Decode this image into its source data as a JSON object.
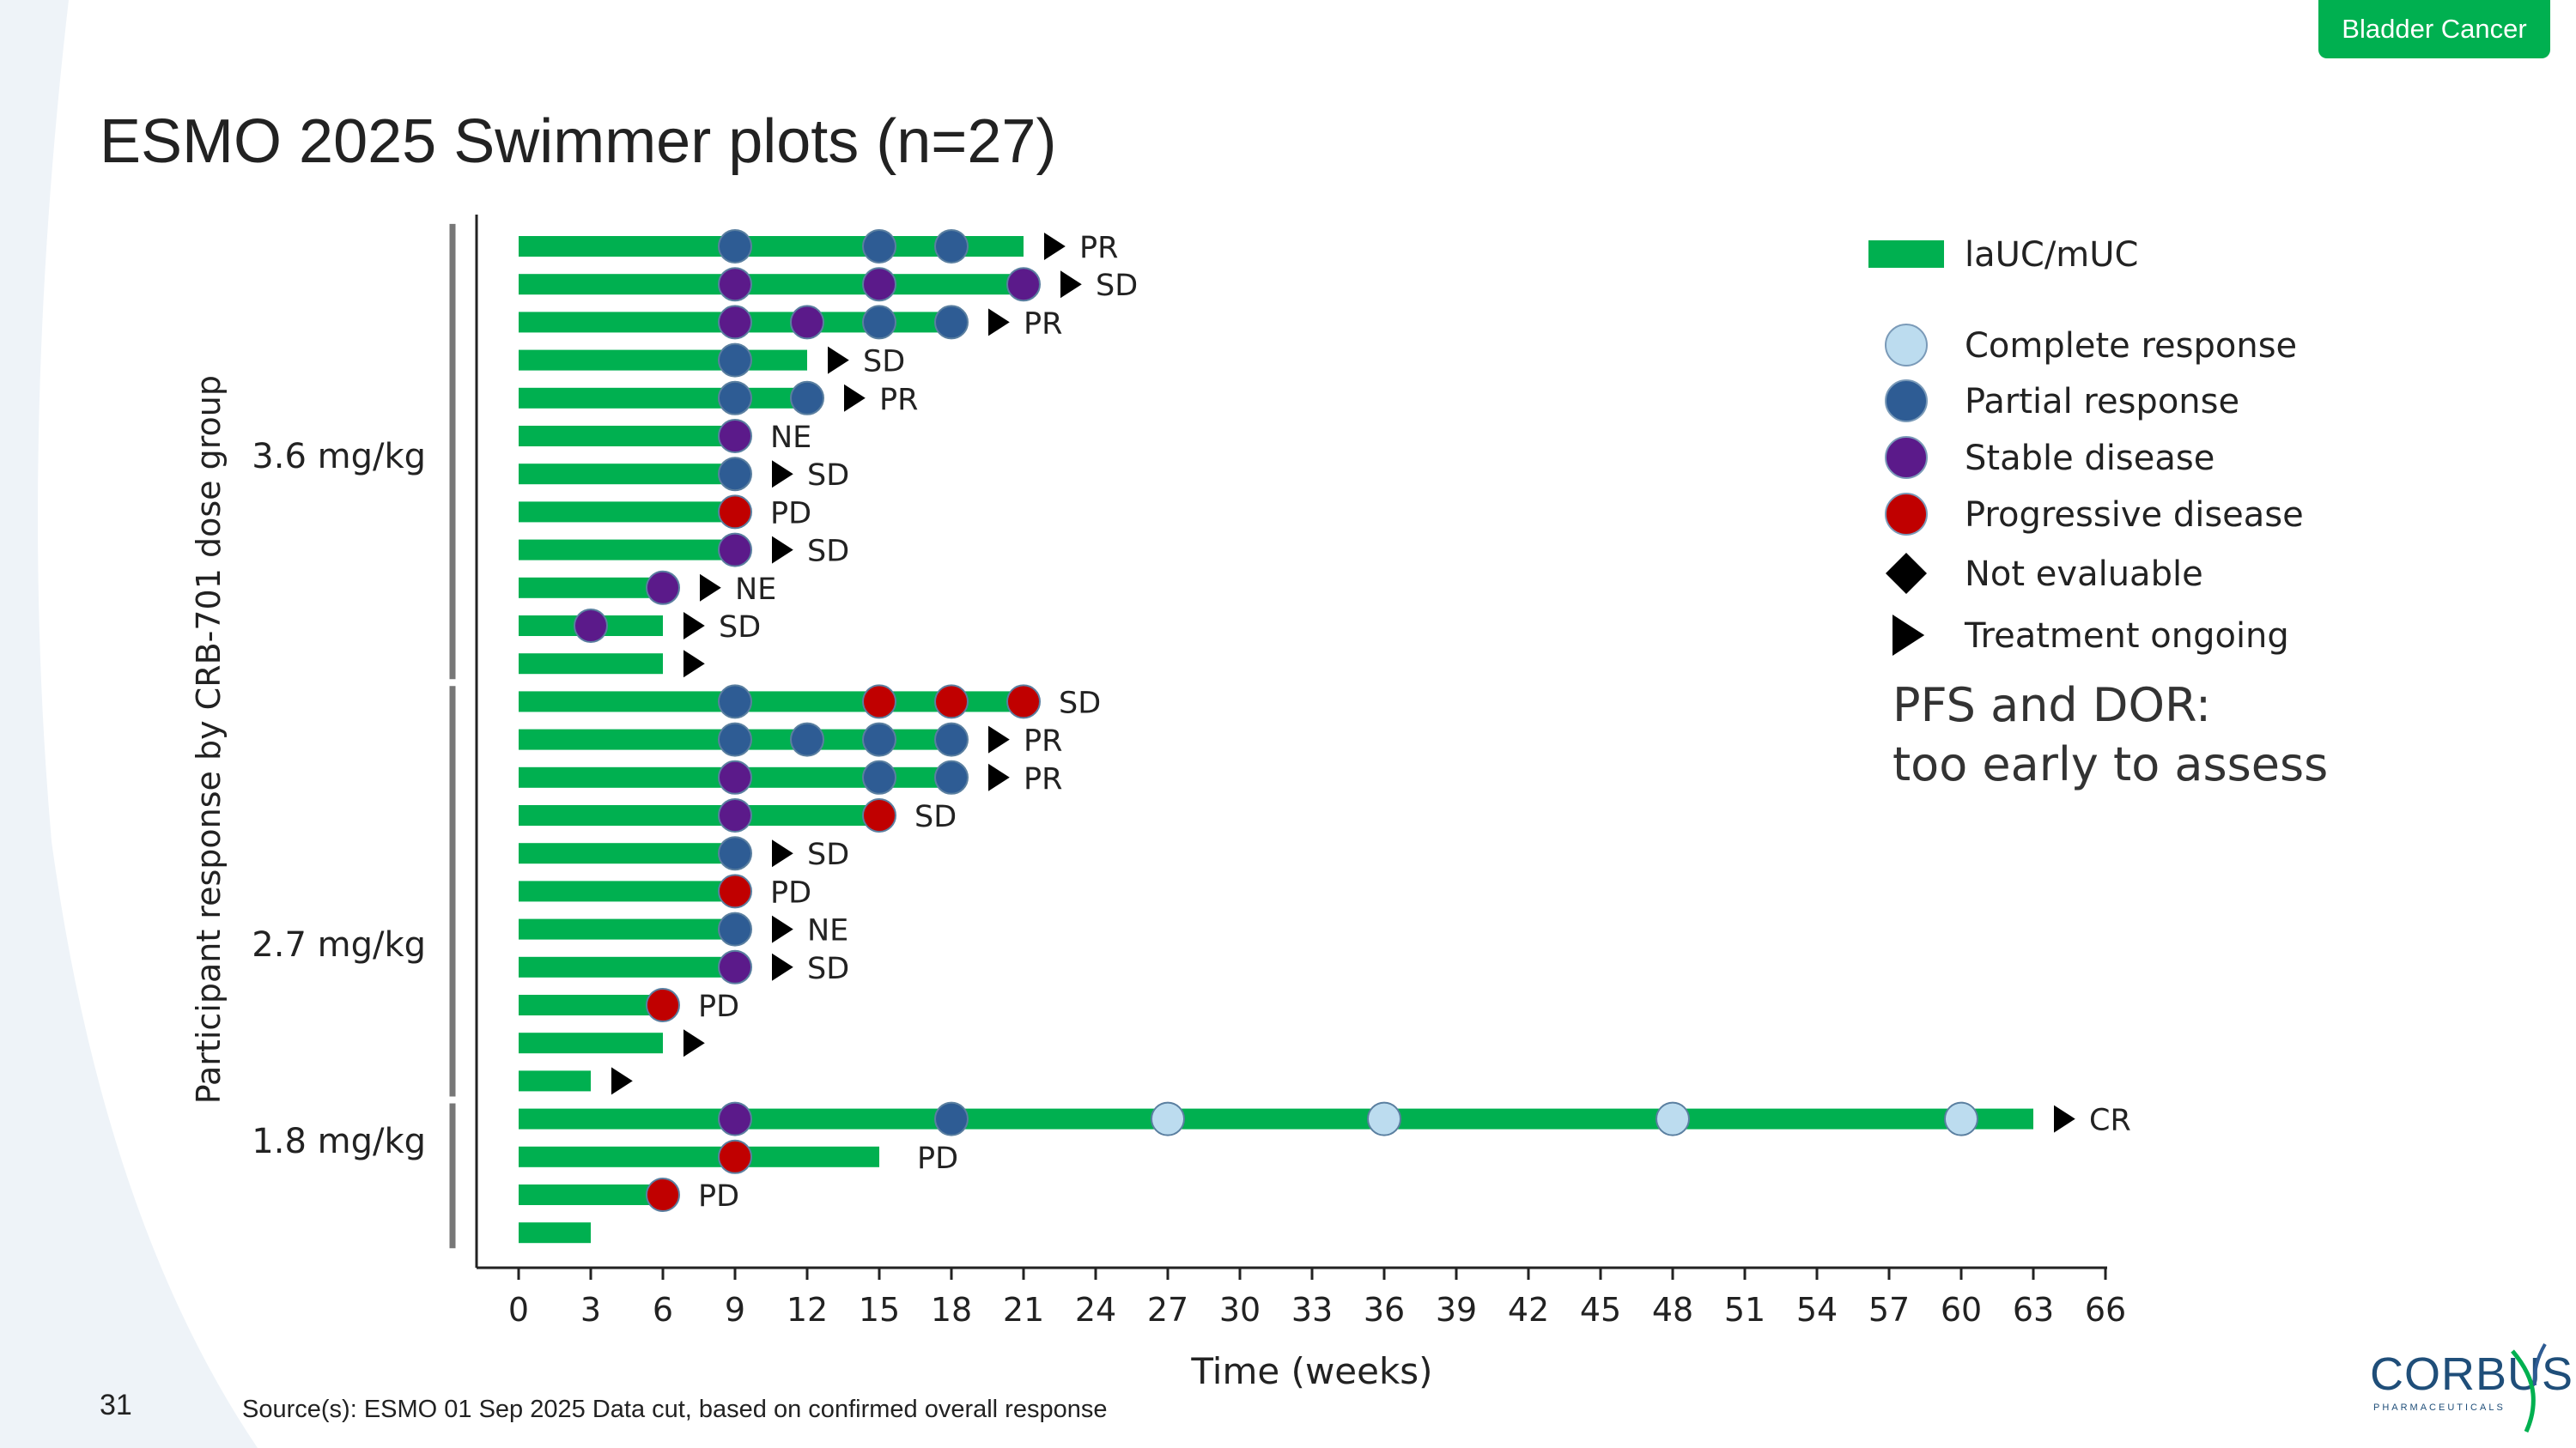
{
  "tag": "Bladder Cancer",
  "title": "ESMO 2025 Swimmer plots (n=27)",
  "page_number": "31",
  "source": "Source(s): ESMO 01 Sep 2025 Data cut, based on confirmed  overall response",
  "logo": {
    "word": "CORBUS",
    "sub": "PHARMACEUTICALS"
  },
  "note": {
    "line1": "PFS and DOR:",
    "line2": "too early to assess"
  },
  "colors": {
    "bar": "#00b050",
    "CR": "#bcdcef",
    "PR": "#2e5c94",
    "SD": "#5b1a8a",
    "PD": "#c00000",
    "accent": "#00b050"
  },
  "chart_data": {
    "type": "swimmer",
    "xlabel": "Time (weeks)",
    "ylabel": "Participant response by CRB-701 dose group",
    "xlim": [
      0,
      66
    ],
    "xticks": [
      0,
      3,
      6,
      9,
      12,
      15,
      18,
      21,
      24,
      27,
      30,
      33,
      36,
      39,
      42,
      45,
      48,
      51,
      54,
      57,
      60,
      63,
      66
    ],
    "groups": [
      {
        "label": "3.6 mg/kg",
        "first_row": 0,
        "last_row": 11
      },
      {
        "label": "2.7 mg/kg",
        "first_row": 12,
        "last_row": 22
      },
      {
        "label": "1.8 mg/kg",
        "first_row": 23,
        "last_row": 26
      }
    ],
    "legend": [
      {
        "kind": "bar",
        "label": "laUC/mUC"
      },
      {
        "kind": "circle",
        "code": "CR",
        "label": "Complete response"
      },
      {
        "kind": "circle",
        "code": "PR",
        "label": "Partial response"
      },
      {
        "kind": "circle",
        "code": "SD",
        "label": "Stable disease"
      },
      {
        "kind": "circle",
        "code": "PD",
        "label": "Progressive disease"
      },
      {
        "kind": "diamond",
        "label": "Not evaluable"
      },
      {
        "kind": "triangle",
        "label": "Treatment ongoing"
      }
    ],
    "participants": [
      {
        "end": 21,
        "ongoing": true,
        "best": "PR",
        "events": [
          {
            "week": 9,
            "r": "PR"
          },
          {
            "week": 15,
            "r": "PR"
          },
          {
            "week": 18,
            "r": "PR"
          }
        ]
      },
      {
        "end": 21,
        "ongoing": true,
        "best": "SD",
        "events": [
          {
            "week": 9,
            "r": "SD"
          },
          {
            "week": 15,
            "r": "SD"
          },
          {
            "week": 21,
            "r": "SD"
          }
        ]
      },
      {
        "end": 18,
        "ongoing": true,
        "best": "PR",
        "events": [
          {
            "week": 9,
            "r": "SD"
          },
          {
            "week": 12,
            "r": "SD"
          },
          {
            "week": 15,
            "r": "PR"
          },
          {
            "week": 18,
            "r": "PR"
          }
        ]
      },
      {
        "end": 12,
        "ongoing": true,
        "best": "SD",
        "events": [
          {
            "week": 9,
            "r": "PR"
          }
        ]
      },
      {
        "end": 12,
        "ongoing": true,
        "best": "PR",
        "events": [
          {
            "week": 9,
            "r": "PR"
          },
          {
            "week": 12,
            "r": "PR"
          }
        ]
      },
      {
        "end": 9,
        "ongoing": false,
        "best": "NE",
        "events": [
          {
            "week": 9,
            "r": "SD"
          }
        ]
      },
      {
        "end": 9,
        "ongoing": true,
        "best": "SD",
        "events": [
          {
            "week": 9,
            "r": "PR"
          }
        ]
      },
      {
        "end": 9,
        "ongoing": false,
        "best": "PD",
        "events": [
          {
            "week": 9,
            "r": "PD"
          }
        ]
      },
      {
        "end": 9,
        "ongoing": true,
        "best": "SD",
        "events": [
          {
            "week": 9,
            "r": "SD"
          }
        ]
      },
      {
        "end": 6,
        "ongoing": true,
        "best": "NE",
        "events": [
          {
            "week": 6,
            "r": "SD"
          }
        ]
      },
      {
        "end": 6,
        "ongoing": true,
        "best": "SD",
        "events": [
          {
            "week": 3,
            "r": "SD"
          }
        ]
      },
      {
        "end": 6,
        "ongoing": true,
        "best": "",
        "events": []
      },
      {
        "end": 21,
        "ongoing": false,
        "best": "SD",
        "events": [
          {
            "week": 9,
            "r": "PR"
          },
          {
            "week": 15,
            "r": "PD"
          },
          {
            "week": 18,
            "r": "PD"
          },
          {
            "week": 21,
            "r": "PD"
          }
        ]
      },
      {
        "end": 18,
        "ongoing": true,
        "best": "PR",
        "events": [
          {
            "week": 9,
            "r": "PR"
          },
          {
            "week": 12,
            "r": "PR"
          },
          {
            "week": 15,
            "r": "PR"
          },
          {
            "week": 18,
            "r": "PR"
          }
        ]
      },
      {
        "end": 18,
        "ongoing": true,
        "best": "PR",
        "events": [
          {
            "week": 9,
            "r": "SD"
          },
          {
            "week": 15,
            "r": "PR"
          },
          {
            "week": 18,
            "r": "PR"
          }
        ]
      },
      {
        "end": 15,
        "ongoing": false,
        "best": "SD",
        "events": [
          {
            "week": 9,
            "r": "SD"
          },
          {
            "week": 15,
            "r": "PD"
          }
        ]
      },
      {
        "end": 9,
        "ongoing": true,
        "best": "SD",
        "events": [
          {
            "week": 9,
            "r": "PR"
          }
        ]
      },
      {
        "end": 9,
        "ongoing": false,
        "best": "PD",
        "events": [
          {
            "week": 9,
            "r": "PD"
          }
        ]
      },
      {
        "end": 9,
        "ongoing": true,
        "best": "NE",
        "events": [
          {
            "week": 9,
            "r": "PR"
          }
        ]
      },
      {
        "end": 9,
        "ongoing": true,
        "best": "SD",
        "events": [
          {
            "week": 9,
            "r": "SD"
          }
        ]
      },
      {
        "end": 6,
        "ongoing": false,
        "best": "PD",
        "events": [
          {
            "week": 6,
            "r": "PD"
          }
        ]
      },
      {
        "end": 6,
        "ongoing": true,
        "best": "",
        "events": []
      },
      {
        "end": 3,
        "ongoing": true,
        "best": "",
        "events": []
      },
      {
        "end": 63,
        "ongoing": true,
        "best": "CR",
        "events": [
          {
            "week": 9,
            "r": "SD"
          },
          {
            "week": 18,
            "r": "PR"
          },
          {
            "week": 27,
            "r": "CR"
          },
          {
            "week": 36,
            "r": "CR"
          },
          {
            "week": 48,
            "r": "CR"
          },
          {
            "week": 60,
            "r": "CR"
          }
        ]
      },
      {
        "end": 15,
        "ongoing": false,
        "best": "PD",
        "events": [
          {
            "week": 9,
            "r": "PD"
          }
        ]
      },
      {
        "end": 6,
        "ongoing": false,
        "best": "PD",
        "events": [
          {
            "week": 6,
            "r": "PD"
          }
        ]
      },
      {
        "end": 3,
        "ongoing": false,
        "best": "",
        "events": []
      }
    ]
  }
}
